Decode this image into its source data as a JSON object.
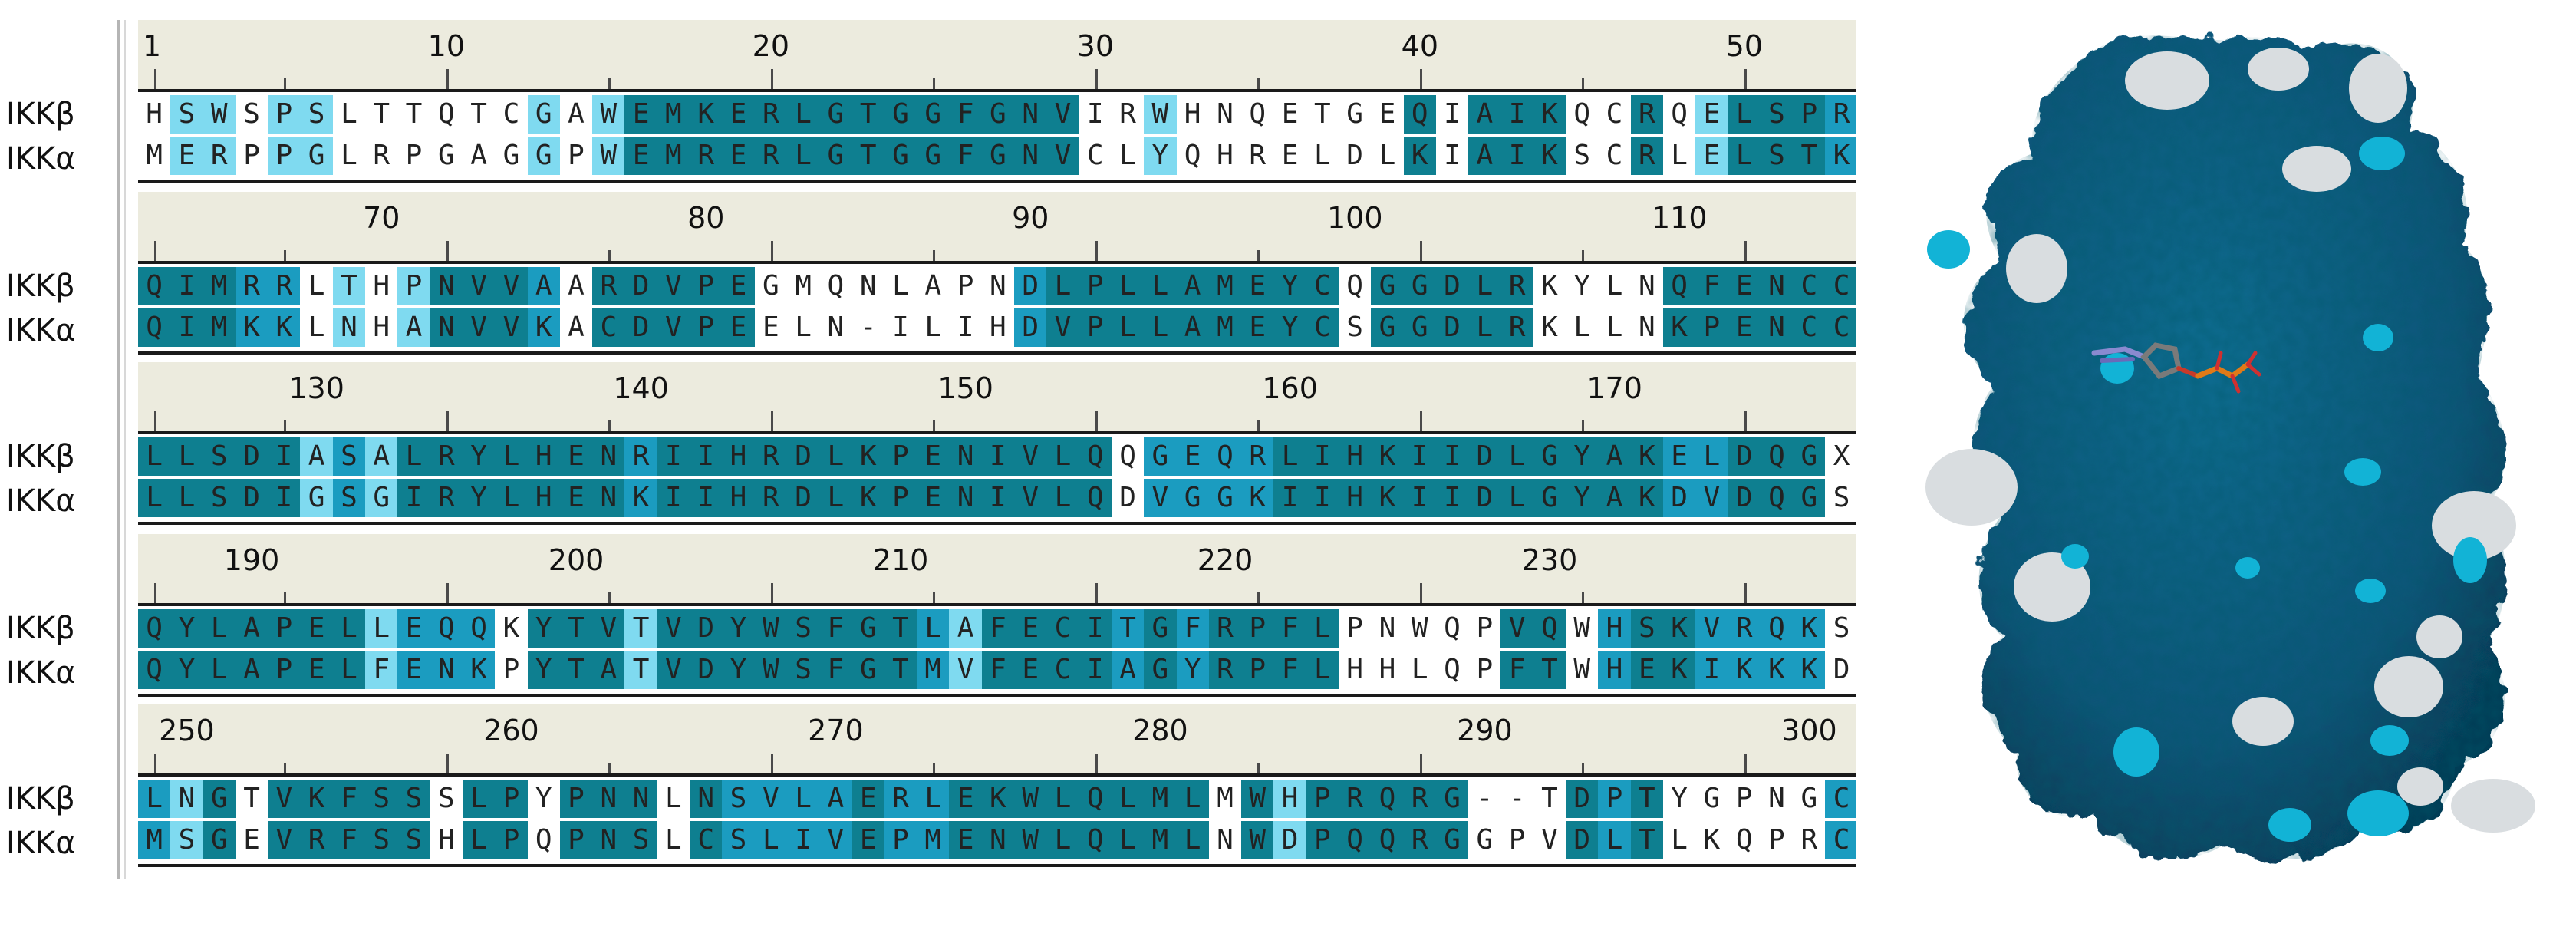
{
  "labels": {
    "seq1": "IKKβ",
    "seq2": "IKKα"
  },
  "blocks": [
    {
      "numbers": [
        {
          "text": "1",
          "col": 1
        },
        {
          "text": "10",
          "col": 10
        },
        {
          "text": "20",
          "col": 20
        },
        {
          "text": "30",
          "col": 30
        },
        {
          "text": "40",
          "col": 40
        },
        {
          "text": "50",
          "col": 50
        }
      ],
      "seq1": "HSWSPSLTTQTCGAWEMKERLGTGGFGNVIRWHNQETGEQIAIKQCRQELSPR",
      "seq2": "MERPPGLRPGAGGPWEMRERLGTGGFGNVCLYQHRELDLKIAIKSCRLELSTK",
      "shade": "01101100000010133333333333333001000000030333003013332"
    },
    {
      "numbers": [
        {
          "text": "70",
          "col": 8
        },
        {
          "text": "80",
          "col": 18
        },
        {
          "text": "90",
          "col": 28
        },
        {
          "text": "100",
          "col": 38
        },
        {
          "text": "110",
          "col": 48
        }
      ],
      "seq1": "QIMRRLTHPNVVAARDVPEGMQNLAPNDLPLLAMEYCQGGDLRKYLNQFENCC",
      "seq2": "QIMKKLNHANVVKACDVPEELN-ILIHDVPLLAMEYCSGGDLRKLLNKPENCC",
      "shade": "33322010133320333330000000023333333330333330000333333"
    },
    {
      "numbers": [
        {
          "text": "130",
          "col": 6
        },
        {
          "text": "140",
          "col": 16
        },
        {
          "text": "150",
          "col": 26
        },
        {
          "text": "160",
          "col": 36
        },
        {
          "text": "170",
          "col": 46
        }
      ],
      "seq1": "LLSDIASALRYLHENRIIHRDLKPENIVLQQGEQRLIHKIIDLGYAKELDQGX",
      "seq2": "LLSDIGSGIRYLHENKIIHRDLKPENIVLQDVGGKIIHKIIDLGYAKDVDQGS",
      "shade": "33333121333333323333333333333302222333333333333223330"
    },
    {
      "numbers": [
        {
          "text": "190",
          "col": 4
        },
        {
          "text": "200",
          "col": 14
        },
        {
          "text": "210",
          "col": 24
        },
        {
          "text": "220",
          "col": 34
        },
        {
          "text": "230",
          "col": 44
        }
      ],
      "seq1": "QYLAPELLEQQKYTVTVDYWSFGTLAFECITGFRPFLPNWQPVQWHSKVRQKS",
      "seq2": "QYLAPELFENKPYTATVDYWSFGTMVFECIAGYRPFLHHLQPFTWHEKIKKKD",
      "shade": "33333331222033313333333321333323233330000033023322220"
    },
    {
      "numbers": [
        {
          "text": "250",
          "col": 2
        },
        {
          "text": "260",
          "col": 12
        },
        {
          "text": "270",
          "col": 22
        },
        {
          "text": "280",
          "col": 32
        },
        {
          "text": "290",
          "col": 42
        },
        {
          "text": "300",
          "col": 52
        }
      ],
      "seq1": "LNGTVKFSSSLPYPNNLNSVLAERLEKWLQLMLMWHPRQRG--TDPTYGPNGC",
      "seq2": "MSGEVRFSSHLPQPNSLCSLIVEPMENWLQLMLNWDPQQRGGPVDLTLKQPRC",
      "shade": "21303333303303330322223223333333303133333000323000002"
    }
  ]
}
